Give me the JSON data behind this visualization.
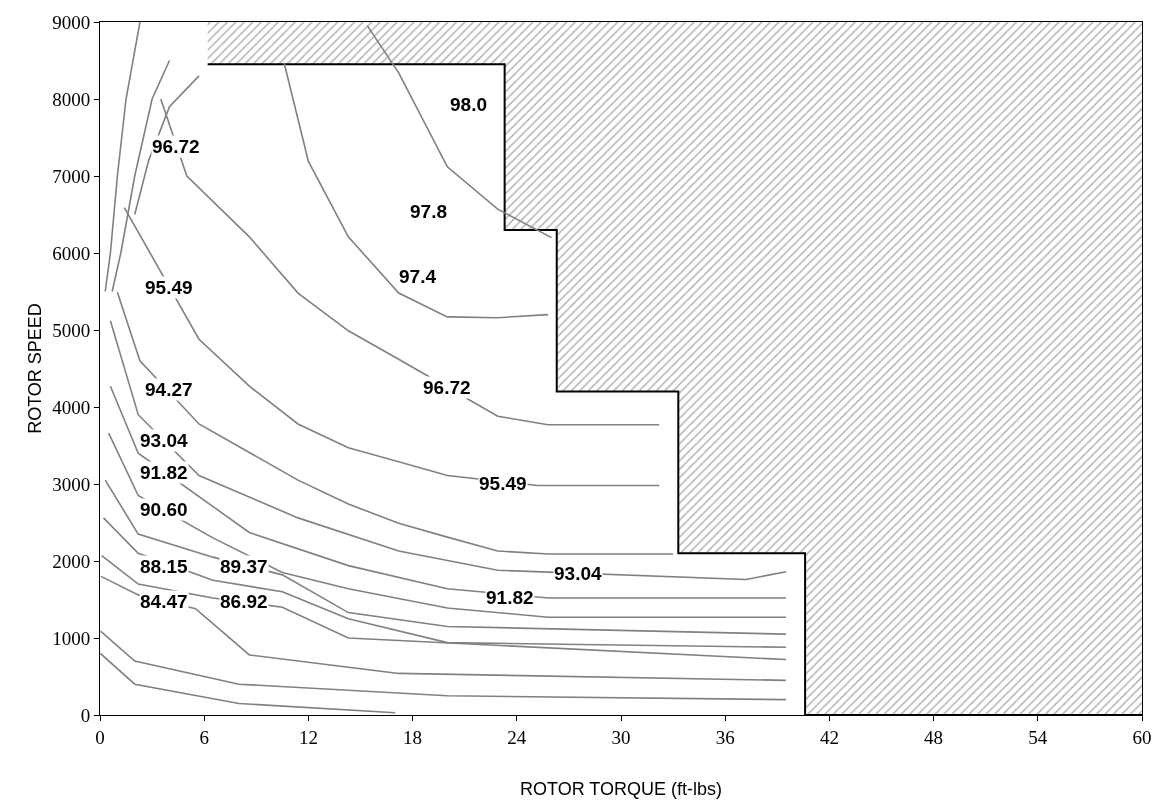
{
  "chart_data": {
    "type": "line",
    "xlabel": "ROTOR TORQUE (ft-lbs)",
    "ylabel": "ROTOR SPEED",
    "xlim": [
      0,
      60
    ],
    "ylim": [
      0,
      9000
    ],
    "xticks": [
      0,
      6,
      12,
      18,
      24,
      30,
      36,
      42,
      48,
      54,
      60
    ],
    "yticks": [
      0,
      1000,
      2000,
      3000,
      4000,
      5000,
      6000,
      7000,
      8000,
      9000
    ],
    "marker": "none",
    "line_style": "solid",
    "series": [
      {
        "type": "step",
        "color": "#000000",
        "x": [
          6.2,
          23.3,
          26.3,
          33.3,
          40.6,
          60
        ],
        "values": [
          8450,
          6300,
          4200,
          2100,
          0,
          0
        ],
        "lower": [
          8450,
          6300,
          4200,
          2100,
          0,
          0
        ],
        "upper": [
          9000,
          9000,
          9000,
          9000,
          9000,
          9000
        ]
      },
      {
        "color": "#808080",
        "x": [
          15.4,
          17.2,
          20.0,
          22.9,
          26.0
        ],
        "values": [
          8950,
          8340,
          7120,
          6570,
          6200
        ]
      },
      {
        "color": "#808080",
        "x": [
          10.6,
          12.0,
          14.3,
          17.2,
          20.0,
          22.9,
          25.8
        ],
        "values": [
          8470,
          7190,
          6210,
          5480,
          5170,
          5160,
          5200
        ]
      },
      {
        "color": "#808080",
        "x": [
          3.5,
          5.0,
          8.6,
          11.4,
          14.3,
          17.2,
          22.9,
          25.8,
          32.2
        ],
        "values": [
          8000,
          7000,
          6210,
          5480,
          4990,
          4620,
          3880,
          3770,
          3770
        ]
      },
      {
        "color": "#808080",
        "x": [
          1.4,
          5.7,
          8.6,
          11.4,
          14.3,
          17.2,
          20.0,
          25.2,
          32.2
        ],
        "values": [
          6590,
          4880,
          4270,
          3780,
          3470,
          3290,
          3110,
          2980,
          2980
        ]
      },
      {
        "color": "#808080",
        "x": [
          1.0,
          2.3,
          5.7,
          8.6,
          11.4,
          14.3,
          17.2,
          20.0,
          22.9,
          25.8,
          33.0
        ],
        "values": [
          5490,
          4600,
          3780,
          3410,
          3050,
          2740,
          2490,
          2310,
          2130,
          2090,
          2090
        ]
      },
      {
        "color": "#808080",
        "x": [
          0.6,
          2.2,
          5.7,
          11.4,
          17.2,
          22.9,
          37.2,
          39.5
        ],
        "values": [
          5120,
          3900,
          3110,
          2560,
          2130,
          1880,
          1760,
          1860
        ]
      },
      {
        "color": "#808080",
        "x": [
          0.6,
          2.2,
          8.6,
          14.3,
          20.0,
          25.8,
          39.5
        ],
        "values": [
          4270,
          3400,
          2370,
          1940,
          1640,
          1520,
          1520
        ]
      },
      {
        "color": "#808080",
        "x": [
          0.5,
          2.2,
          6.5,
          10.5,
          14.3,
          20.0,
          25.8,
          39.5
        ],
        "values": [
          3660,
          2850,
          2300,
          1850,
          1640,
          1390,
          1270,
          1270
        ]
      },
      {
        "color": "#808080",
        "x": [
          0.3,
          2.2,
          6.5,
          10.5,
          14.3,
          20.0,
          39.5
        ],
        "values": [
          3050,
          2350,
          2050,
          1820,
          1330,
          1150,
          1050
        ]
      },
      {
        "color": "#808080",
        "x": [
          0.2,
          2.2,
          6.5,
          10.5,
          14.3,
          20.0,
          39.5
        ],
        "values": [
          2560,
          2100,
          1750,
          1600,
          1250,
          940,
          880
        ]
      },
      {
        "color": "#808080",
        "x": [
          0.1,
          2.2,
          6.5,
          10.5,
          14.3,
          39.5
        ],
        "values": [
          2070,
          1700,
          1520,
          1400,
          1000,
          720
        ]
      },
      {
        "color": "#808080",
        "x": [
          0.06,
          2.2,
          5.5,
          8.6,
          17.2,
          39.5
        ],
        "values": [
          1800,
          1560,
          1380,
          780,
          540,
          450
        ]
      },
      {
        "color": "#808080",
        "x": [
          0.03,
          2.0,
          8.0,
          20.0,
          39.5
        ],
        "values": [
          1090,
          700,
          400,
          250,
          200
        ]
      },
      {
        "color": "#808080",
        "x": [
          0.02,
          2.0,
          8.0,
          17.0
        ],
        "values": [
          800,
          400,
          150,
          30
        ]
      },
      {
        "color": "#808080",
        "x": [
          2.3,
          1.5,
          1.0,
          0.6,
          0.3
        ],
        "values": [
          9000,
          8000,
          7000,
          6000,
          5500
        ]
      },
      {
        "color": "#808080",
        "x": [
          4.0,
          3.0,
          2.0,
          1.2,
          0.7
        ],
        "values": [
          8500,
          8000,
          7000,
          6000,
          5500
        ]
      },
      {
        "color": "#808080",
        "x": [
          5.7,
          4.0,
          2.8,
          2.0
        ],
        "values": [
          8300,
          7900,
          7200,
          6500
        ]
      }
    ],
    "annotations": [
      {
        "text": "98.0",
        "x": 21.2,
        "y": 7930
      },
      {
        "text": "96.72",
        "x": 4.4,
        "y": 7380
      },
      {
        "text": "97.8",
        "x": 18.9,
        "y": 6540
      },
      {
        "text": "97.4",
        "x": 18.3,
        "y": 5700
      },
      {
        "text": "95.49",
        "x": 4.0,
        "y": 5550
      },
      {
        "text": "94.27",
        "x": 4.0,
        "y": 4230
      },
      {
        "text": "96.72",
        "x": 20.0,
        "y": 4250
      },
      {
        "text": "93.04",
        "x": 3.7,
        "y": 3570
      },
      {
        "text": "91.82",
        "x": 3.7,
        "y": 3150
      },
      {
        "text": "95.49",
        "x": 23.2,
        "y": 3010
      },
      {
        "text": "90.60",
        "x": 3.7,
        "y": 2670
      },
      {
        "text": "88.15",
        "x": 3.7,
        "y": 1930
      },
      {
        "text": "89.37",
        "x": 8.3,
        "y": 1930
      },
      {
        "text": "93.04",
        "x": 27.5,
        "y": 1840
      },
      {
        "text": "84.47",
        "x": 3.7,
        "y": 1480
      },
      {
        "text": "86.92",
        "x": 8.3,
        "y": 1480
      },
      {
        "text": "91.82",
        "x": 23.6,
        "y": 1520
      }
    ]
  }
}
